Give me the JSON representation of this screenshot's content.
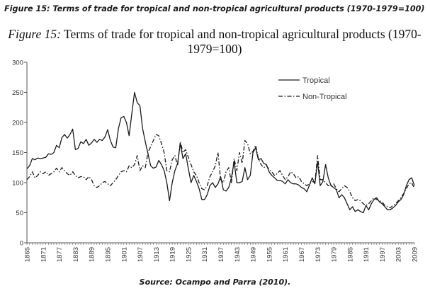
{
  "caption": "Figure 15: Terms of trade for tropical and non-tropical agricultural products (1970-1979=100)",
  "figure_title": {
    "label": "Figure 15:",
    "text_line1": "Terms of trade for tropical and non-tropical agricultural products (1970-",
    "text_line2": "1979=100)"
  },
  "source": "Source: Ocampo and Parra (2010).",
  "chart_data": {
    "type": "line",
    "title": "Terms of trade for tropical and non-tropical agricultural products (1970-1979=100)",
    "xlabel": "",
    "ylabel": "",
    "xlim": [
      1865,
      2009
    ],
    "ylim": [
      0,
      300
    ],
    "yticks": [
      0,
      50,
      100,
      150,
      200,
      250,
      300
    ],
    "xticks": [
      1865,
      1871,
      1877,
      1883,
      1889,
      1895,
      1901,
      1907,
      1913,
      1919,
      1925,
      1931,
      1937,
      1943,
      1949,
      1955,
      1961,
      1967,
      1973,
      1979,
      1985,
      1991,
      1997,
      2003,
      2009
    ],
    "legend_position": "top-right",
    "series": [
      {
        "name": "Tropical",
        "style": "solid",
        "points": [
          [
            1865,
            123
          ],
          [
            1866,
            128
          ],
          [
            1867,
            140
          ],
          [
            1868,
            138
          ],
          [
            1869,
            141
          ],
          [
            1870,
            140
          ],
          [
            1871,
            141
          ],
          [
            1872,
            142
          ],
          [
            1873,
            148
          ],
          [
            1874,
            147
          ],
          [
            1875,
            150
          ],
          [
            1876,
            162
          ],
          [
            1877,
            158
          ],
          [
            1878,
            175
          ],
          [
            1879,
            180
          ],
          [
            1880,
            174
          ],
          [
            1881,
            180
          ],
          [
            1882,
            189
          ],
          [
            1883,
            155
          ],
          [
            1884,
            157
          ],
          [
            1885,
            168
          ],
          [
            1886,
            165
          ],
          [
            1887,
            172
          ],
          [
            1888,
            162
          ],
          [
            1889,
            166
          ],
          [
            1890,
            172
          ],
          [
            1891,
            167
          ],
          [
            1892,
            172
          ],
          [
            1893,
            170
          ],
          [
            1894,
            176
          ],
          [
            1895,
            188
          ],
          [
            1896,
            170
          ],
          [
            1897,
            159
          ],
          [
            1898,
            158
          ],
          [
            1899,
            190
          ],
          [
            1900,
            208
          ],
          [
            1901,
            210
          ],
          [
            1902,
            200
          ],
          [
            1903,
            178
          ],
          [
            1904,
            215
          ],
          [
            1905,
            250
          ],
          [
            1906,
            233
          ],
          [
            1907,
            228
          ],
          [
            1908,
            190
          ],
          [
            1909,
            168
          ],
          [
            1910,
            148
          ],
          [
            1911,
            128
          ],
          [
            1912,
            124
          ],
          [
            1913,
            126
          ],
          [
            1914,
            137
          ],
          [
            1915,
            130
          ],
          [
            1916,
            120
          ],
          [
            1917,
            100
          ],
          [
            1918,
            70
          ],
          [
            1919,
            100
          ],
          [
            1920,
            120
          ],
          [
            1921,
            132
          ],
          [
            1922,
            165
          ],
          [
            1923,
            140
          ],
          [
            1924,
            148
          ],
          [
            1925,
            123
          ],
          [
            1926,
            100
          ],
          [
            1927,
            112
          ],
          [
            1928,
            102
          ],
          [
            1929,
            90
          ],
          [
            1930,
            72
          ],
          [
            1931,
            72
          ],
          [
            1932,
            80
          ],
          [
            1933,
            95
          ],
          [
            1934,
            100
          ],
          [
            1935,
            92
          ],
          [
            1936,
            98
          ],
          [
            1937,
            110
          ],
          [
            1938,
            88
          ],
          [
            1939,
            86
          ],
          [
            1940,
            92
          ],
          [
            1941,
            108
          ],
          [
            1942,
            135
          ],
          [
            1943,
            100
          ],
          [
            1944,
            100
          ],
          [
            1945,
            102
          ],
          [
            1946,
            125
          ],
          [
            1947,
            105
          ],
          [
            1948,
            112
          ],
          [
            1949,
            150
          ],
          [
            1950,
            158
          ],
          [
            1951,
            138
          ],
          [
            1952,
            140
          ],
          [
            1953,
            132
          ],
          [
            1954,
            130
          ],
          [
            1955,
            118
          ],
          [
            1956,
            112
          ],
          [
            1957,
            108
          ],
          [
            1958,
            104
          ],
          [
            1959,
            104
          ],
          [
            1960,
            102
          ],
          [
            1961,
            98
          ],
          [
            1962,
            105
          ],
          [
            1963,
            100
          ],
          [
            1964,
            98
          ],
          [
            1965,
            98
          ],
          [
            1966,
            96
          ],
          [
            1967,
            92
          ],
          [
            1968,
            90
          ],
          [
            1969,
            85
          ],
          [
            1970,
            96
          ],
          [
            1971,
            108
          ],
          [
            1972,
            98
          ],
          [
            1973,
            135
          ],
          [
            1974,
            95
          ],
          [
            1975,
            102
          ],
          [
            1976,
            130
          ],
          [
            1977,
            108
          ],
          [
            1978,
            95
          ],
          [
            1979,
            92
          ],
          [
            1980,
            88
          ],
          [
            1981,
            75
          ],
          [
            1982,
            80
          ],
          [
            1983,
            75
          ],
          [
            1984,
            65
          ],
          [
            1985,
            55
          ],
          [
            1986,
            60
          ],
          [
            1987,
            52
          ],
          [
            1988,
            55
          ],
          [
            1989,
            52
          ],
          [
            1990,
            50
          ],
          [
            1991,
            62
          ],
          [
            1992,
            55
          ],
          [
            1993,
            65
          ],
          [
            1994,
            72
          ],
          [
            1995,
            75
          ],
          [
            1996,
            68
          ],
          [
            1997,
            65
          ],
          [
            1998,
            60
          ],
          [
            1999,
            55
          ],
          [
            2000,
            55
          ],
          [
            2001,
            58
          ],
          [
            2002,
            62
          ],
          [
            2003,
            68
          ],
          [
            2004,
            72
          ],
          [
            2005,
            80
          ],
          [
            2006,
            95
          ],
          [
            2007,
            105
          ],
          [
            2008,
            108
          ],
          [
            2009,
            95
          ]
        ]
      },
      {
        "name": "Non-Tropical",
        "style": "dashdot",
        "points": [
          [
            1865,
            105
          ],
          [
            1866,
            110
          ],
          [
            1867,
            118
          ],
          [
            1868,
            108
          ],
          [
            1869,
            112
          ],
          [
            1870,
            118
          ],
          [
            1871,
            115
          ],
          [
            1872,
            118
          ],
          [
            1873,
            112
          ],
          [
            1874,
            115
          ],
          [
            1875,
            118
          ],
          [
            1876,
            124
          ],
          [
            1877,
            118
          ],
          [
            1878,
            125
          ],
          [
            1879,
            120
          ],
          [
            1880,
            115
          ],
          [
            1881,
            112
          ],
          [
            1882,
            118
          ],
          [
            1883,
            112
          ],
          [
            1884,
            108
          ],
          [
            1885,
            110
          ],
          [
            1886,
            110
          ],
          [
            1887,
            105
          ],
          [
            1888,
            110
          ],
          [
            1889,
            105
          ],
          [
            1890,
            95
          ],
          [
            1891,
            92
          ],
          [
            1892,
            95
          ],
          [
            1893,
            100
          ],
          [
            1894,
            102
          ],
          [
            1895,
            98
          ],
          [
            1896,
            95
          ],
          [
            1897,
            100
          ],
          [
            1898,
            105
          ],
          [
            1899,
            112
          ],
          [
            1900,
            118
          ],
          [
            1901,
            120
          ],
          [
            1902,
            118
          ],
          [
            1903,
            128
          ],
          [
            1904,
            125
          ],
          [
            1905,
            130
          ],
          [
            1906,
            145
          ],
          [
            1907,
            120
          ],
          [
            1908,
            128
          ],
          [
            1909,
            125
          ],
          [
            1910,
            150
          ],
          [
            1911,
            160
          ],
          [
            1912,
            170
          ],
          [
            1913,
            180
          ],
          [
            1914,
            178
          ],
          [
            1915,
            165
          ],
          [
            1916,
            150
          ],
          [
            1917,
            120
          ],
          [
            1918,
            118
          ],
          [
            1919,
            138
          ],
          [
            1920,
            145
          ],
          [
            1921,
            128
          ],
          [
            1922,
            168
          ],
          [
            1923,
            150
          ],
          [
            1924,
            155
          ],
          [
            1925,
            142
          ],
          [
            1926,
            130
          ],
          [
            1927,
            118
          ],
          [
            1928,
            112
          ],
          [
            1929,
            100
          ],
          [
            1930,
            90
          ],
          [
            1931,
            88
          ],
          [
            1932,
            95
          ],
          [
            1933,
            110
          ],
          [
            1934,
            118
          ],
          [
            1935,
            128
          ],
          [
            1936,
            150
          ],
          [
            1937,
            105
          ],
          [
            1938,
            100
          ],
          [
            1939,
            118
          ],
          [
            1940,
            125
          ],
          [
            1941,
            100
          ],
          [
            1942,
            140
          ],
          [
            1943,
            120
          ],
          [
            1944,
            150
          ],
          [
            1945,
            132
          ],
          [
            1946,
            170
          ],
          [
            1947,
            165
          ],
          [
            1948,
            148
          ],
          [
            1949,
            152
          ],
          [
            1950,
            162
          ],
          [
            1951,
            140
          ],
          [
            1952,
            130
          ],
          [
            1953,
            125
          ],
          [
            1954,
            128
          ],
          [
            1955,
            122
          ],
          [
            1956,
            118
          ],
          [
            1957,
            112
          ],
          [
            1958,
            115
          ],
          [
            1959,
            120
          ],
          [
            1960,
            112
          ],
          [
            1961,
            105
          ],
          [
            1962,
            110
          ],
          [
            1963,
            118
          ],
          [
            1964,
            115
          ],
          [
            1965,
            108
          ],
          [
            1966,
            110
          ],
          [
            1967,
            102
          ],
          [
            1968,
            98
          ],
          [
            1969,
            95
          ],
          [
            1970,
            98
          ],
          [
            1971,
            102
          ],
          [
            1972,
            100
          ],
          [
            1973,
            145
          ],
          [
            1974,
            105
          ],
          [
            1975,
            105
          ],
          [
            1976,
            100
          ],
          [
            1977,
            95
          ],
          [
            1978,
            95
          ],
          [
            1979,
            98
          ],
          [
            1980,
            90
          ],
          [
            1981,
            85
          ],
          [
            1982,
            90
          ],
          [
            1983,
            95
          ],
          [
            1984,
            92
          ],
          [
            1985,
            85
          ],
          [
            1986,
            75
          ],
          [
            1987,
            70
          ],
          [
            1988,
            72
          ],
          [
            1989,
            70
          ],
          [
            1990,
            65
          ],
          [
            1991,
            62
          ],
          [
            1992,
            65
          ],
          [
            1993,
            70
          ],
          [
            1994,
            75
          ],
          [
            1995,
            72
          ],
          [
            1996,
            70
          ],
          [
            1997,
            68
          ],
          [
            1998,
            62
          ],
          [
            1999,
            60
          ],
          [
            2000,
            58
          ],
          [
            2001,
            62
          ],
          [
            2002,
            65
          ],
          [
            2003,
            70
          ],
          [
            2004,
            75
          ],
          [
            2005,
            82
          ],
          [
            2006,
            90
          ],
          [
            2007,
            98
          ],
          [
            2008,
            100
          ],
          [
            2009,
            90
          ]
        ]
      }
    ]
  }
}
